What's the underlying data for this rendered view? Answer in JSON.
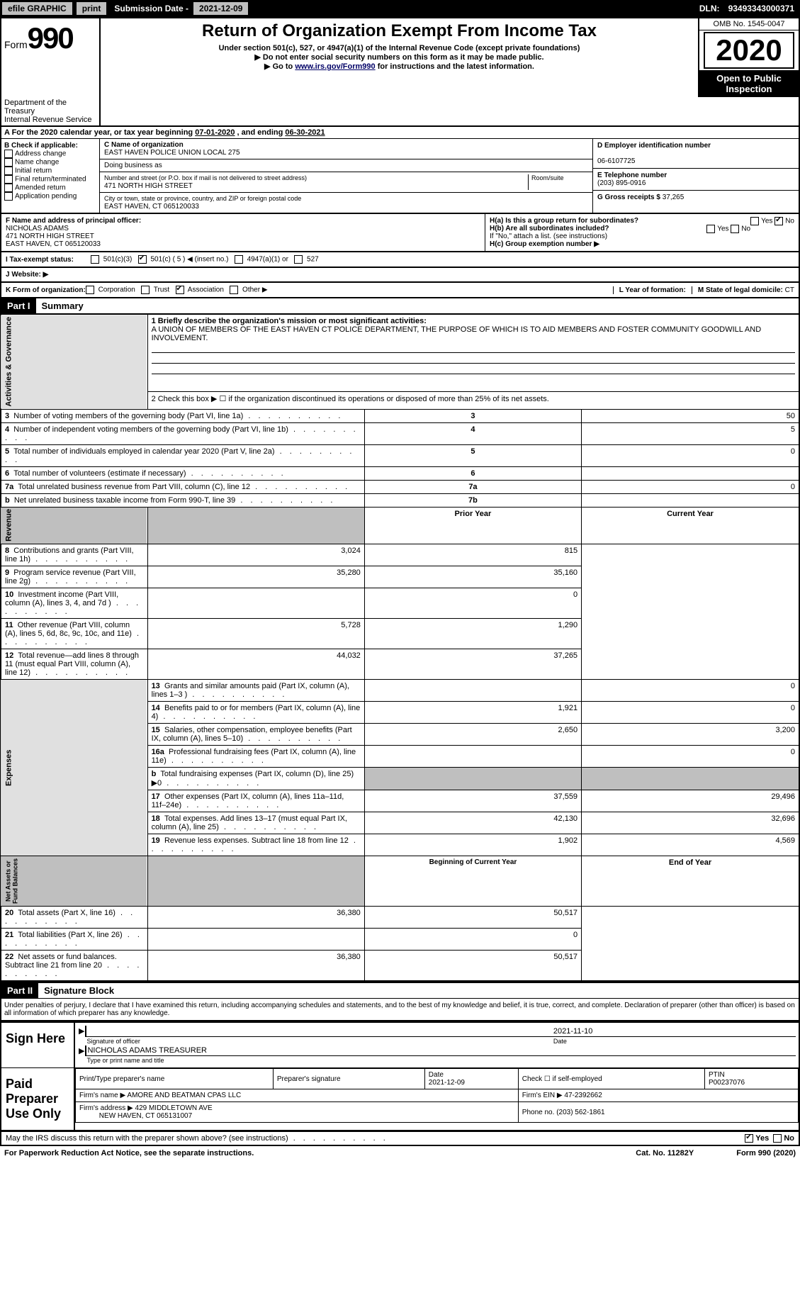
{
  "top_bar": {
    "efile_label": "efile GRAPHIC",
    "print_btn": "print",
    "sub_date_label": "Submission Date -",
    "sub_date": "2021-12-09",
    "dln_label": "DLN:",
    "dln": "93493343000371"
  },
  "form_header": {
    "form_word": "Form",
    "form_num": "990",
    "title": "Return of Organization Exempt From Income Tax",
    "subtitle": "Under section 501(c), 527, or 4947(a)(1) of the Internal Revenue Code (except private foundations)",
    "warn1": "▶ Do not enter social security numbers on this form as it may be made public.",
    "warn2_pre": "▶ Go to ",
    "warn2_link": "www.irs.gov/Form990",
    "warn2_post": " for instructions and the latest information.",
    "omb": "OMB No. 1545-0047",
    "year": "2020",
    "open_public": "Open to Public Inspection",
    "dept1": "Department of the Treasury",
    "dept2": "Internal Revenue Service"
  },
  "a_row": {
    "pre": "A For the 2020 calendar year, or tax year beginning ",
    "begin": "07-01-2020",
    "mid": " , and ending ",
    "end": "06-30-2021"
  },
  "section_b": {
    "header": "B Check if applicable:",
    "opts": [
      "Address change",
      "Name change",
      "Initial return",
      "Final return/terminated",
      "Amended return",
      "Application pending"
    ],
    "chk": [
      false,
      false,
      false,
      false,
      false,
      false
    ]
  },
  "section_c": {
    "label": "C Name of organization",
    "name": "EAST HAVEN POLICE UNION LOCAL 275",
    "dba_label": "Doing business as",
    "dba": "",
    "addr_label": "Number and street (or P.O. box if mail is not delivered to street address)",
    "room_label": "Room/suite",
    "street": "471 NORTH HIGH STREET",
    "city_label": "City or town, state or province, country, and ZIP or foreign postal code",
    "city": "EAST HAVEN, CT  065120033"
  },
  "section_d": {
    "label": "D Employer identification number",
    "ein": "06-6107725"
  },
  "section_e": {
    "label": "E Telephone number",
    "phone": "(203) 895-0916"
  },
  "section_g": {
    "label": "G Gross receipts $",
    "val": "37,265"
  },
  "section_f": {
    "label": "F Name and address of principal officer:",
    "name": "NICHOLAS ADAMS",
    "street": "471 NORTH HIGH STREET",
    "city": "EAST HAVEN, CT  065120033"
  },
  "section_h": {
    "a_label": "H(a)  Is this a group return for subordinates?",
    "a_yes": false,
    "a_no": true,
    "b_label": "H(b)  Are all subordinates included?",
    "b_yes": false,
    "b_no": false,
    "b_note": "If \"No,\" attach a list. (see instructions)",
    "c_label": "H(c)  Group exemption number ▶"
  },
  "section_i": {
    "label": "I  Tax-exempt status:",
    "opts": [
      "501(c)(3)",
      "501(c) ( 5 ) ◀ (insert no.)",
      "4947(a)(1) or",
      "527"
    ],
    "chk": [
      false,
      true,
      false,
      false
    ]
  },
  "section_j": {
    "label": "J  Website: ▶",
    "val": ""
  },
  "section_k": {
    "label": "K Form of organization:",
    "opts": [
      "Corporation",
      "Trust",
      "Association",
      "Other ▶"
    ],
    "chk": [
      false,
      false,
      true,
      false
    ]
  },
  "section_l": {
    "label": "L Year of formation:",
    "val": ""
  },
  "section_m": {
    "label": "M State of legal domicile:",
    "val": "CT"
  },
  "part1": {
    "header": "Part I",
    "title": "Summary",
    "mission_label": "1  Briefly describe the organization's mission or most significant activities:",
    "mission": "A UNION OF MEMBERS OF THE EAST HAVEN CT POLICE DEPARTMENT, THE PURPOSE OF WHICH IS TO AID MEMBERS AND FOSTER COMMUNITY GOODWILL AND INVOLVEMENT.",
    "line2": "2  Check this box ▶ ☐  if the organization discontinued its operations or disposed of more than 25% of its net assets.",
    "rows_ag": [
      {
        "n": "3",
        "text": "Number of voting members of the governing body (Part VI, line 1a)",
        "lab": "3",
        "val": "50"
      },
      {
        "n": "4",
        "text": "Number of independent voting members of the governing body (Part VI, line 1b)",
        "lab": "4",
        "val": "5"
      },
      {
        "n": "5",
        "text": "Total number of individuals employed in calendar year 2020 (Part V, line 2a)",
        "lab": "5",
        "val": "0"
      },
      {
        "n": "6",
        "text": "Total number of volunteers (estimate if necessary)",
        "lab": "6",
        "val": ""
      },
      {
        "n": "7a",
        "text": "Total unrelated business revenue from Part VIII, column (C), line 12",
        "lab": "7a",
        "val": "0"
      },
      {
        "n": "b",
        "text": "Net unrelated business taxable income from Form 990-T, line 39",
        "lab": "7b",
        "val": ""
      }
    ],
    "col_prior": "Prior Year",
    "col_current": "Current Year",
    "sections": [
      {
        "side": "Revenue",
        "rows": [
          {
            "n": "8",
            "text": "Contributions and grants (Part VIII, line 1h)",
            "py": "3,024",
            "cy": "815"
          },
          {
            "n": "9",
            "text": "Program service revenue (Part VIII, line 2g)",
            "py": "35,280",
            "cy": "35,160"
          },
          {
            "n": "10",
            "text": "Investment income (Part VIII, column (A), lines 3, 4, and 7d )",
            "py": "",
            "cy": "0"
          },
          {
            "n": "11",
            "text": "Other revenue (Part VIII, column (A), lines 5, 6d, 8c, 9c, 10c, and 11e)",
            "py": "5,728",
            "cy": "1,290"
          },
          {
            "n": "12",
            "text": "Total revenue—add lines 8 through 11 (must equal Part VIII, column (A), line 12)",
            "py": "44,032",
            "cy": "37,265"
          }
        ]
      },
      {
        "side": "Expenses",
        "rows": [
          {
            "n": "13",
            "text": "Grants and similar amounts paid (Part IX, column (A), lines 1–3 )",
            "py": "",
            "cy": "0"
          },
          {
            "n": "14",
            "text": "Benefits paid to or for members (Part IX, column (A), line 4)",
            "py": "1,921",
            "cy": "0"
          },
          {
            "n": "15",
            "text": "Salaries, other compensation, employee benefits (Part IX, column (A), lines 5–10)",
            "py": "2,650",
            "cy": "3,200"
          },
          {
            "n": "16a",
            "text": "Professional fundraising fees (Part IX, column (A), line 11e)",
            "py": "",
            "cy": "0"
          },
          {
            "n": "b",
            "text": "Total fundraising expenses (Part IX, column (D), line 25) ▶0",
            "py": "SHADE",
            "cy": "SHADE"
          },
          {
            "n": "17",
            "text": "Other expenses (Part IX, column (A), lines 11a–11d, 11f–24e)",
            "py": "37,559",
            "cy": "29,496"
          },
          {
            "n": "18",
            "text": "Total expenses. Add lines 13–17 (must equal Part IX, column (A), line 25)",
            "py": "42,130",
            "cy": "32,696"
          },
          {
            "n": "19",
            "text": "Revenue less expenses. Subtract line 18 from line 12",
            "py": "1,902",
            "cy": "4,569"
          }
        ]
      }
    ],
    "col_begin": "Beginning of Current Year",
    "col_end": "End of Year",
    "na_section": {
      "side": "Net Assets or Fund Balances",
      "rows": [
        {
          "n": "20",
          "text": "Total assets (Part X, line 16)",
          "by": "36,380",
          "ey": "50,517"
        },
        {
          "n": "21",
          "text": "Total liabilities (Part X, line 26)",
          "by": "",
          "ey": "0"
        },
        {
          "n": "22",
          "text": "Net assets or fund balances. Subtract line 21 from line 20",
          "by": "36,380",
          "ey": "50,517"
        }
      ]
    }
  },
  "part2": {
    "header": "Part II",
    "title": "Signature Block",
    "jurat": "Under penalties of perjury, I declare that I have examined this return, including accompanying schedules and statements, and to the best of my knowledge and belief, it is true, correct, and complete. Declaration of preparer (other than officer) is based on all information of which preparer has any knowledge.",
    "sign_here": "Sign Here",
    "sig_of_officer": "Signature of officer",
    "sig_date": "2021-11-10",
    "date_label": "Date",
    "officer_name": "NICHOLAS ADAMS  TREASURER",
    "type_label": "Type or print name and title",
    "paid_prep": "Paid Preparer Use Only",
    "prep_cols": [
      "Print/Type preparer's name",
      "Preparer's signature",
      "Date",
      "Check ☐ if self-employed",
      "PTIN"
    ],
    "prep_date": "2021-12-09",
    "ptin": "P00237076",
    "firm_name_label": "Firm's name    ▶",
    "firm_name": "AMORE AND BEATMAN CPAS LLC",
    "firm_ein_label": "Firm's EIN ▶",
    "firm_ein": "47-2392662",
    "firm_addr_label": "Firm's address ▶",
    "firm_addr1": "429 MIDDLETOWN AVE",
    "firm_addr2": "NEW HAVEN, CT  065131007",
    "firm_phone_label": "Phone no.",
    "firm_phone": "(203) 562-1861",
    "discuss": "May the IRS discuss this return with the preparer shown above? (see instructions)",
    "discuss_yes": true,
    "discuss_no": false
  },
  "footer": {
    "paperwork": "For Paperwork Reduction Act Notice, see the separate instructions.",
    "cat": "Cat. No. 11282Y",
    "form": "Form 990 (2020)"
  }
}
